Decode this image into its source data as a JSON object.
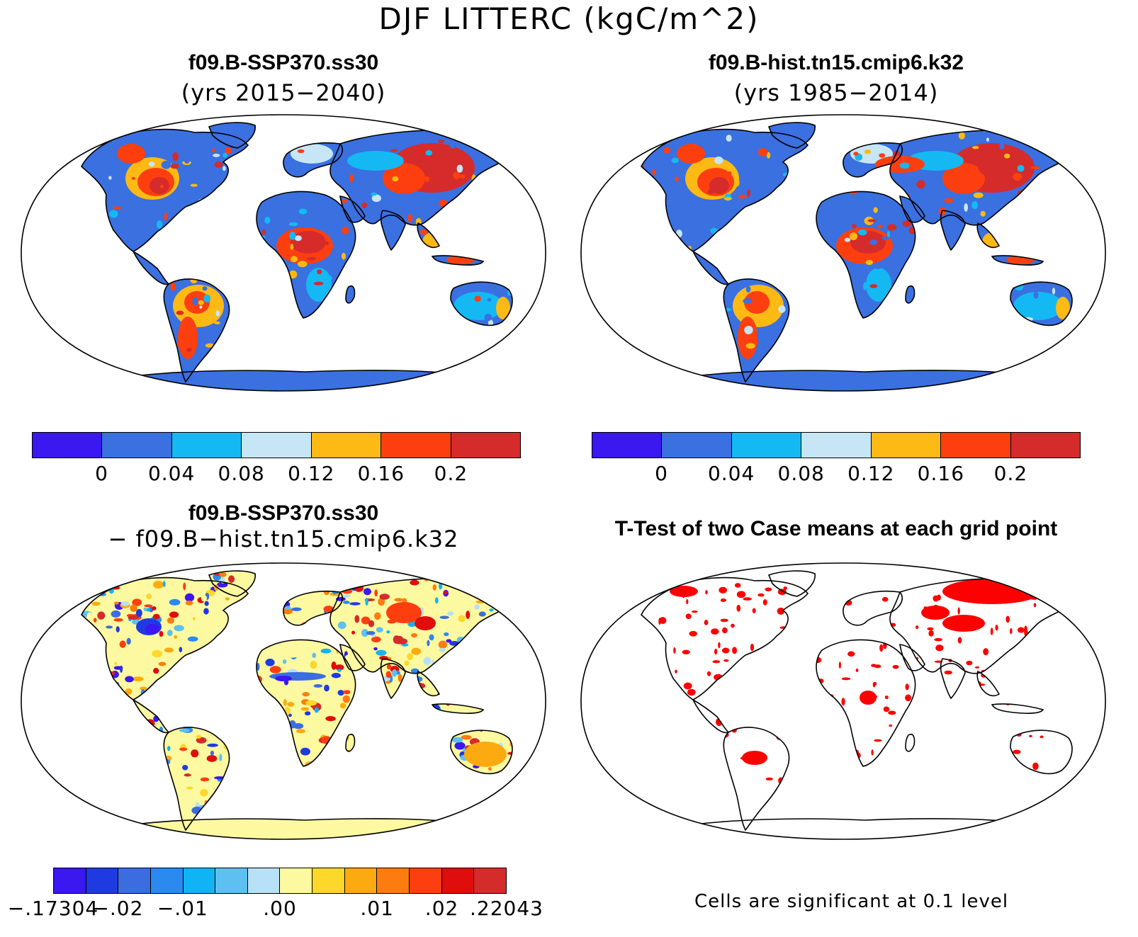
{
  "main_title": "DJF LITTERC (kgC/m^2)",
  "panels": [
    {
      "title": "f09.B-SSP370.ss30",
      "subtitle": "(yrs 2015−2040)"
    },
    {
      "title": "f09.B-hist.tn15.cmip6.k32",
      "subtitle": "(yrs 1985−2014)"
    },
    {
      "title": "f09.B-SSP370.ss30",
      "subtitle": "− f09.B−hist.tn15.cmip6.k32"
    },
    {
      "title": "T-Test of two Case means at each grid point",
      "subtitle": ""
    }
  ],
  "colorbar_main": {
    "colors": [
      "#3b17f0",
      "#3a70e0",
      "#14b9f4",
      "#c6e6f6",
      "#fdb914",
      "#fd3f0f",
      "#d52b2b"
    ],
    "labels": [
      "0",
      "0.04",
      "0.08",
      "0.12",
      "0.16",
      "0.2"
    ]
  },
  "colorbar_diff": {
    "colors": [
      "#3b17f0",
      "#1f3ae0",
      "#3b6de0",
      "#2a8af0",
      "#10b4f4",
      "#5ec0f0",
      "#b8e0f6",
      "#fdf9a0",
      "#fdd72a",
      "#fdaa10",
      "#fd7c10",
      "#fd3f0f",
      "#e00d0d",
      "#d52b2b"
    ],
    "labels": [
      "-.17304",
      "-.02",
      "-.01",
      ".00",
      ".01",
      ".02",
      ".22043"
    ]
  },
  "significance_note": "Cells are significant at 0.1 level",
  "colors": {
    "land_low": "#3a70e0",
    "land_mid": "#fdb914",
    "land_high": "#d52b2b",
    "diff_neutral": "#fdf9a0",
    "significant": "#ff0000"
  }
}
